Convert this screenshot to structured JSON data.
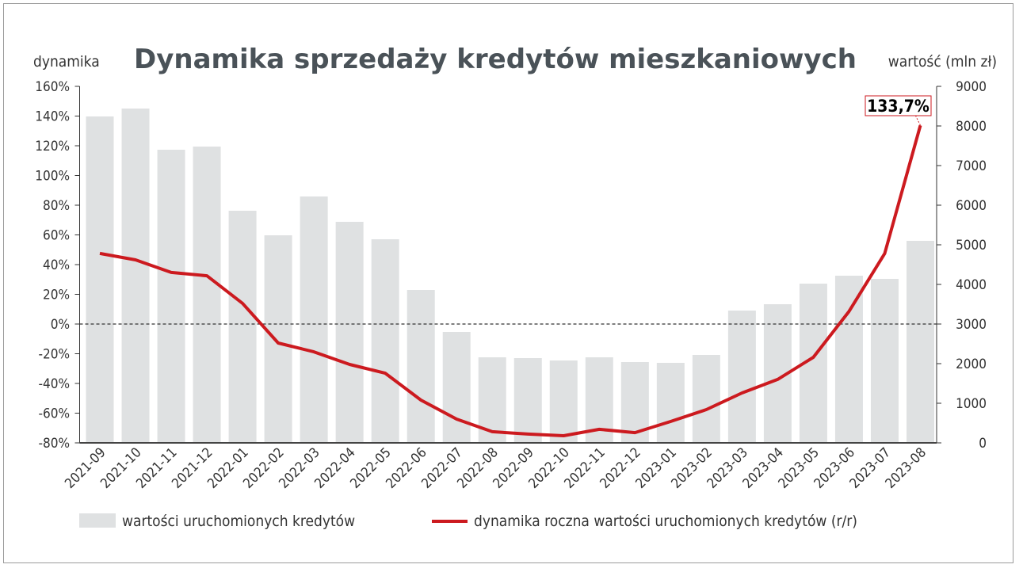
{
  "chart_data": {
    "type": "bar+line",
    "title": "Dynamika sprzedaży kredytów mieszkaniowych",
    "ylabel_left": "dynamika",
    "ylabel_right": "wartość (mln zł)",
    "categories": [
      "2021-09",
      "2021-10",
      "2021-11",
      "2021-12",
      "2022-01",
      "2022-02",
      "2022-03",
      "2022-04",
      "2022-05",
      "2022-06",
      "2022-07",
      "2022-08",
      "2022-09",
      "2022-10",
      "2022-11",
      "2022-12",
      "2023-01",
      "2023-02",
      "2023-03",
      "2023-04",
      "2023-05",
      "2023-06",
      "2023-07",
      "2023-08"
    ],
    "y_left": {
      "min": -80,
      "max": 160,
      "step": 20,
      "ticks": [
        "160%",
        "140%",
        "120%",
        "100%",
        "80%",
        "60%",
        "40%",
        "20%",
        "0%",
        "-20%",
        "-40%",
        "-60%",
        "-80%"
      ]
    },
    "y_right": {
      "min": 0,
      "max": 9000,
      "step": 1000,
      "ticks": [
        "9000",
        "8000",
        "7000",
        "6000",
        "5000",
        "4000",
        "3000",
        "2000",
        "1000",
        "0"
      ]
    },
    "series": [
      {
        "name": "wartości uruchomionych kredytów",
        "type": "bar",
        "axis": "right",
        "color": "#dfe1e2",
        "values": [
          8240,
          8440,
          7400,
          7480,
          5860,
          5240,
          6220,
          5580,
          5140,
          3860,
          2800,
          2160,
          2140,
          2080,
          2160,
          2040,
          2020,
          2220,
          3340,
          3500,
          4020,
          4220,
          4140,
          5100
        ]
      },
      {
        "name": "dynamika roczna wartości uruchomionych kredytów (r/r)",
        "type": "line",
        "axis": "left",
        "color": "#cc1a1f",
        "values": [
          47.5,
          43.2,
          34.7,
          32.5,
          13.9,
          -12.8,
          -18.7,
          -27.2,
          -33.1,
          -51.2,
          -64.0,
          -72.5,
          -74.1,
          -75.2,
          -70.9,
          -73.1,
          -65.6,
          -57.6,
          -46.4,
          -37.3,
          -22.4,
          8.5,
          47.5,
          133.7
        ]
      }
    ],
    "annotation": {
      "text": "133,7%",
      "category": "2023-08"
    },
    "zero_line": "dashed",
    "grid": false,
    "legend": "bottom"
  }
}
